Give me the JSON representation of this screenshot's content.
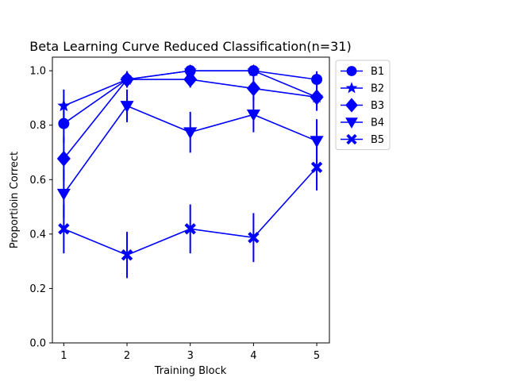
{
  "chart_data": {
    "type": "line",
    "title": "Beta Learning Curve Reduced Classification(n=31)",
    "xlabel": "Training Block",
    "ylabel": "Proportioin Correct",
    "x": [
      1,
      2,
      3,
      4,
      5
    ],
    "xticks": [
      "1",
      "2",
      "3",
      "4",
      "5"
    ],
    "yticks": [
      "0.0",
      "0.2",
      "0.4",
      "0.6",
      "0.8",
      "1.0"
    ],
    "ylim": [
      0,
      1.05
    ],
    "xlim": [
      0.82,
      5.2
    ],
    "color": "#0000ff",
    "legend_position": "outside-right-top",
    "series": [
      {
        "name": "B1",
        "marker": "circle",
        "values": [
          0.806,
          0.968,
          1.0,
          1.0,
          0.968
        ],
        "err": [
          0.07,
          0.03,
          0.0,
          0.0,
          0.03
        ]
      },
      {
        "name": "B2",
        "marker": "star",
        "values": [
          0.871,
          0.968,
          1.0,
          1.0,
          0.903
        ],
        "err": [
          0.06,
          0.03,
          0.0,
          0.0,
          0.05
        ]
      },
      {
        "name": "B3",
        "marker": "diamond",
        "values": [
          0.677,
          0.968,
          0.968,
          0.935,
          0.903
        ],
        "err": [
          0.08,
          0.03,
          0.03,
          0.045,
          0.05
        ]
      },
      {
        "name": "B4",
        "marker": "triangle",
        "values": [
          0.548,
          0.871,
          0.774,
          0.839,
          0.742
        ],
        "err": [
          0.09,
          0.06,
          0.075,
          0.065,
          0.08
        ]
      },
      {
        "name": "B5",
        "marker": "x",
        "values": [
          0.419,
          0.323,
          0.419,
          0.387,
          0.645
        ],
        "err": [
          0.09,
          0.085,
          0.09,
          0.09,
          0.085
        ]
      }
    ]
  }
}
